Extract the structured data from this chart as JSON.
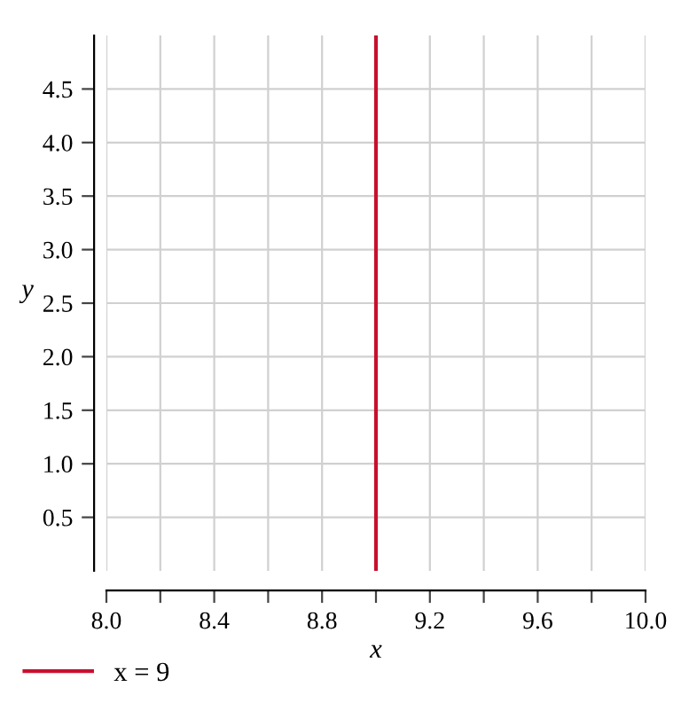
{
  "chart_data": {
    "type": "line",
    "xlabel": "x",
    "ylabel": "y",
    "series": [
      {
        "name": "x = 9",
        "color": "#c8102e",
        "x": [
          9,
          9
        ],
        "values": [
          0,
          5
        ]
      }
    ],
    "xlim": [
      8.0,
      10.0
    ],
    "xticks": [
      {
        "value": 8.0,
        "label": "8.0"
      },
      {
        "value": 8.2,
        "label": null
      },
      {
        "value": 8.4,
        "label": "8.4"
      },
      {
        "value": 8.6,
        "label": null
      },
      {
        "value": 8.8,
        "label": "8.8"
      },
      {
        "value": 9.0,
        "label": null
      },
      {
        "value": 9.2,
        "label": "9.2"
      },
      {
        "value": 9.4,
        "label": null
      },
      {
        "value": 9.6,
        "label": "9.6"
      },
      {
        "value": 9.8,
        "label": null
      },
      {
        "value": 10.0,
        "label": "10.0"
      }
    ],
    "ylim": [
      0,
      5
    ],
    "yticks": [
      {
        "value": 0.5,
        "label": "0.5"
      },
      {
        "value": 1.0,
        "label": "1.0"
      },
      {
        "value": 1.5,
        "label": "1.5"
      },
      {
        "value": 2.0,
        "label": "2.0"
      },
      {
        "value": 2.5,
        "label": "2.5"
      },
      {
        "value": 3.0,
        "label": "3.0"
      },
      {
        "value": 3.5,
        "label": "3.5"
      },
      {
        "value": 4.0,
        "label": "4.0"
      },
      {
        "value": 4.5,
        "label": "4.5"
      }
    ],
    "grid": true,
    "legend": "bottom left",
    "line_style": "solid",
    "marker": "none"
  }
}
